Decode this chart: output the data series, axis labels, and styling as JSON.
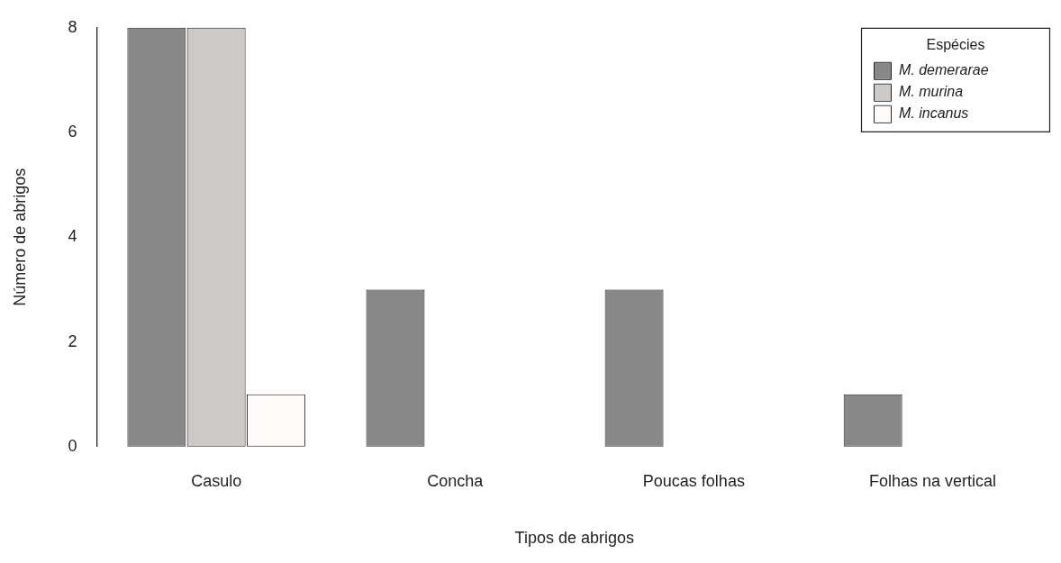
{
  "chart_data": {
    "type": "bar",
    "xlabel": "Tipos de abrigos",
    "ylabel": "Número de abrigos",
    "legend_title": "Espécies",
    "legend": "top right",
    "categories": [
      "Casulo",
      "Concha",
      "Poucas folhas",
      "Folhas na vertical"
    ],
    "series": [
      {
        "name": "M. demerarae",
        "color": "#888888",
        "values": [
          8,
          3,
          3,
          1
        ]
      },
      {
        "name": "M. murina",
        "color": "#cdc9c9",
        "values": [
          8,
          0,
          0,
          0
        ]
      },
      {
        "name": "M. incanus",
        "color": "#fffafa",
        "values": [
          1,
          0,
          0,
          0
        ]
      }
    ],
    "ylim": [
      0,
      8
    ],
    "yticks": [
      0,
      2,
      4,
      6,
      8
    ]
  }
}
